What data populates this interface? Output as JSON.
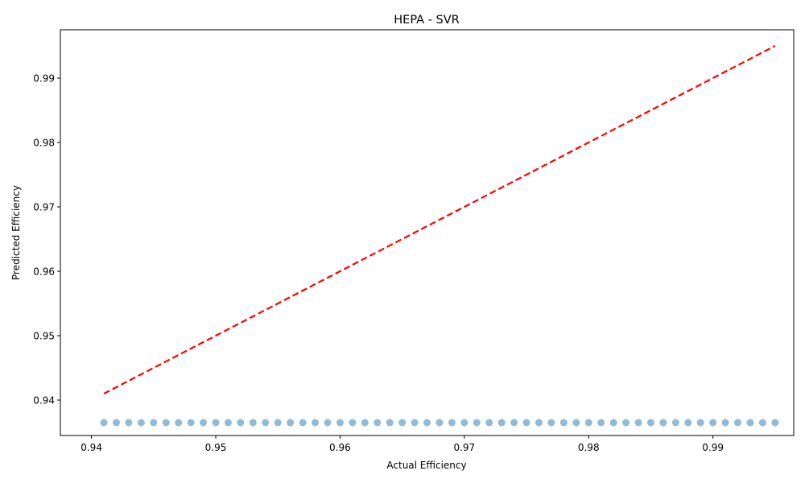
{
  "chart_data": {
    "type": "scatter",
    "title": "HEPA - SVR",
    "xlabel": "Actual Efficiency",
    "ylabel": "Predicted Efficiency",
    "xlim": [
      0.9375,
      0.9965
    ],
    "ylim": [
      0.9345,
      0.9975
    ],
    "xticks": [
      "0.94",
      "0.95",
      "0.96",
      "0.97",
      "0.98",
      "0.99"
    ],
    "yticks": [
      "0.94",
      "0.95",
      "0.96",
      "0.97",
      "0.98",
      "0.99"
    ],
    "grid": false,
    "legend": "none",
    "point_color": "#1f77b4",
    "line_color": "#ff0000",
    "series": [
      {
        "kind": "points",
        "x": [
          0.941,
          0.942,
          0.943,
          0.944,
          0.945,
          0.946,
          0.947,
          0.948,
          0.949,
          0.95,
          0.951,
          0.952,
          0.953,
          0.954,
          0.955,
          0.956,
          0.957,
          0.958,
          0.959,
          0.96,
          0.961,
          0.962,
          0.963,
          0.964,
          0.965,
          0.966,
          0.967,
          0.968,
          0.969,
          0.97,
          0.971,
          0.972,
          0.973,
          0.974,
          0.975,
          0.976,
          0.977,
          0.978,
          0.979,
          0.98,
          0.981,
          0.982,
          0.983,
          0.984,
          0.985,
          0.986,
          0.987,
          0.988,
          0.989,
          0.99,
          0.991,
          0.992,
          0.993,
          0.994,
          0.995
        ],
        "y": [
          0.9365,
          0.9365,
          0.9365,
          0.9365,
          0.9365,
          0.9365,
          0.9365,
          0.9365,
          0.9365,
          0.9365,
          0.9365,
          0.9365,
          0.9365,
          0.9365,
          0.9365,
          0.9365,
          0.9365,
          0.9365,
          0.9365,
          0.9365,
          0.9365,
          0.9365,
          0.9365,
          0.9365,
          0.9365,
          0.9365,
          0.9365,
          0.9365,
          0.9365,
          0.9365,
          0.9365,
          0.9365,
          0.9365,
          0.9365,
          0.9365,
          0.9365,
          0.9365,
          0.9365,
          0.9365,
          0.9365,
          0.9365,
          0.9365,
          0.9365,
          0.9365,
          0.9365,
          0.9365,
          0.9365,
          0.9365,
          0.9365,
          0.9365,
          0.9365,
          0.9365,
          0.9365,
          0.9365,
          0.9365
        ]
      },
      {
        "kind": "reference-line",
        "style": "dashed",
        "x": [
          0.941,
          0.995
        ],
        "y": [
          0.941,
          0.995
        ]
      }
    ]
  }
}
